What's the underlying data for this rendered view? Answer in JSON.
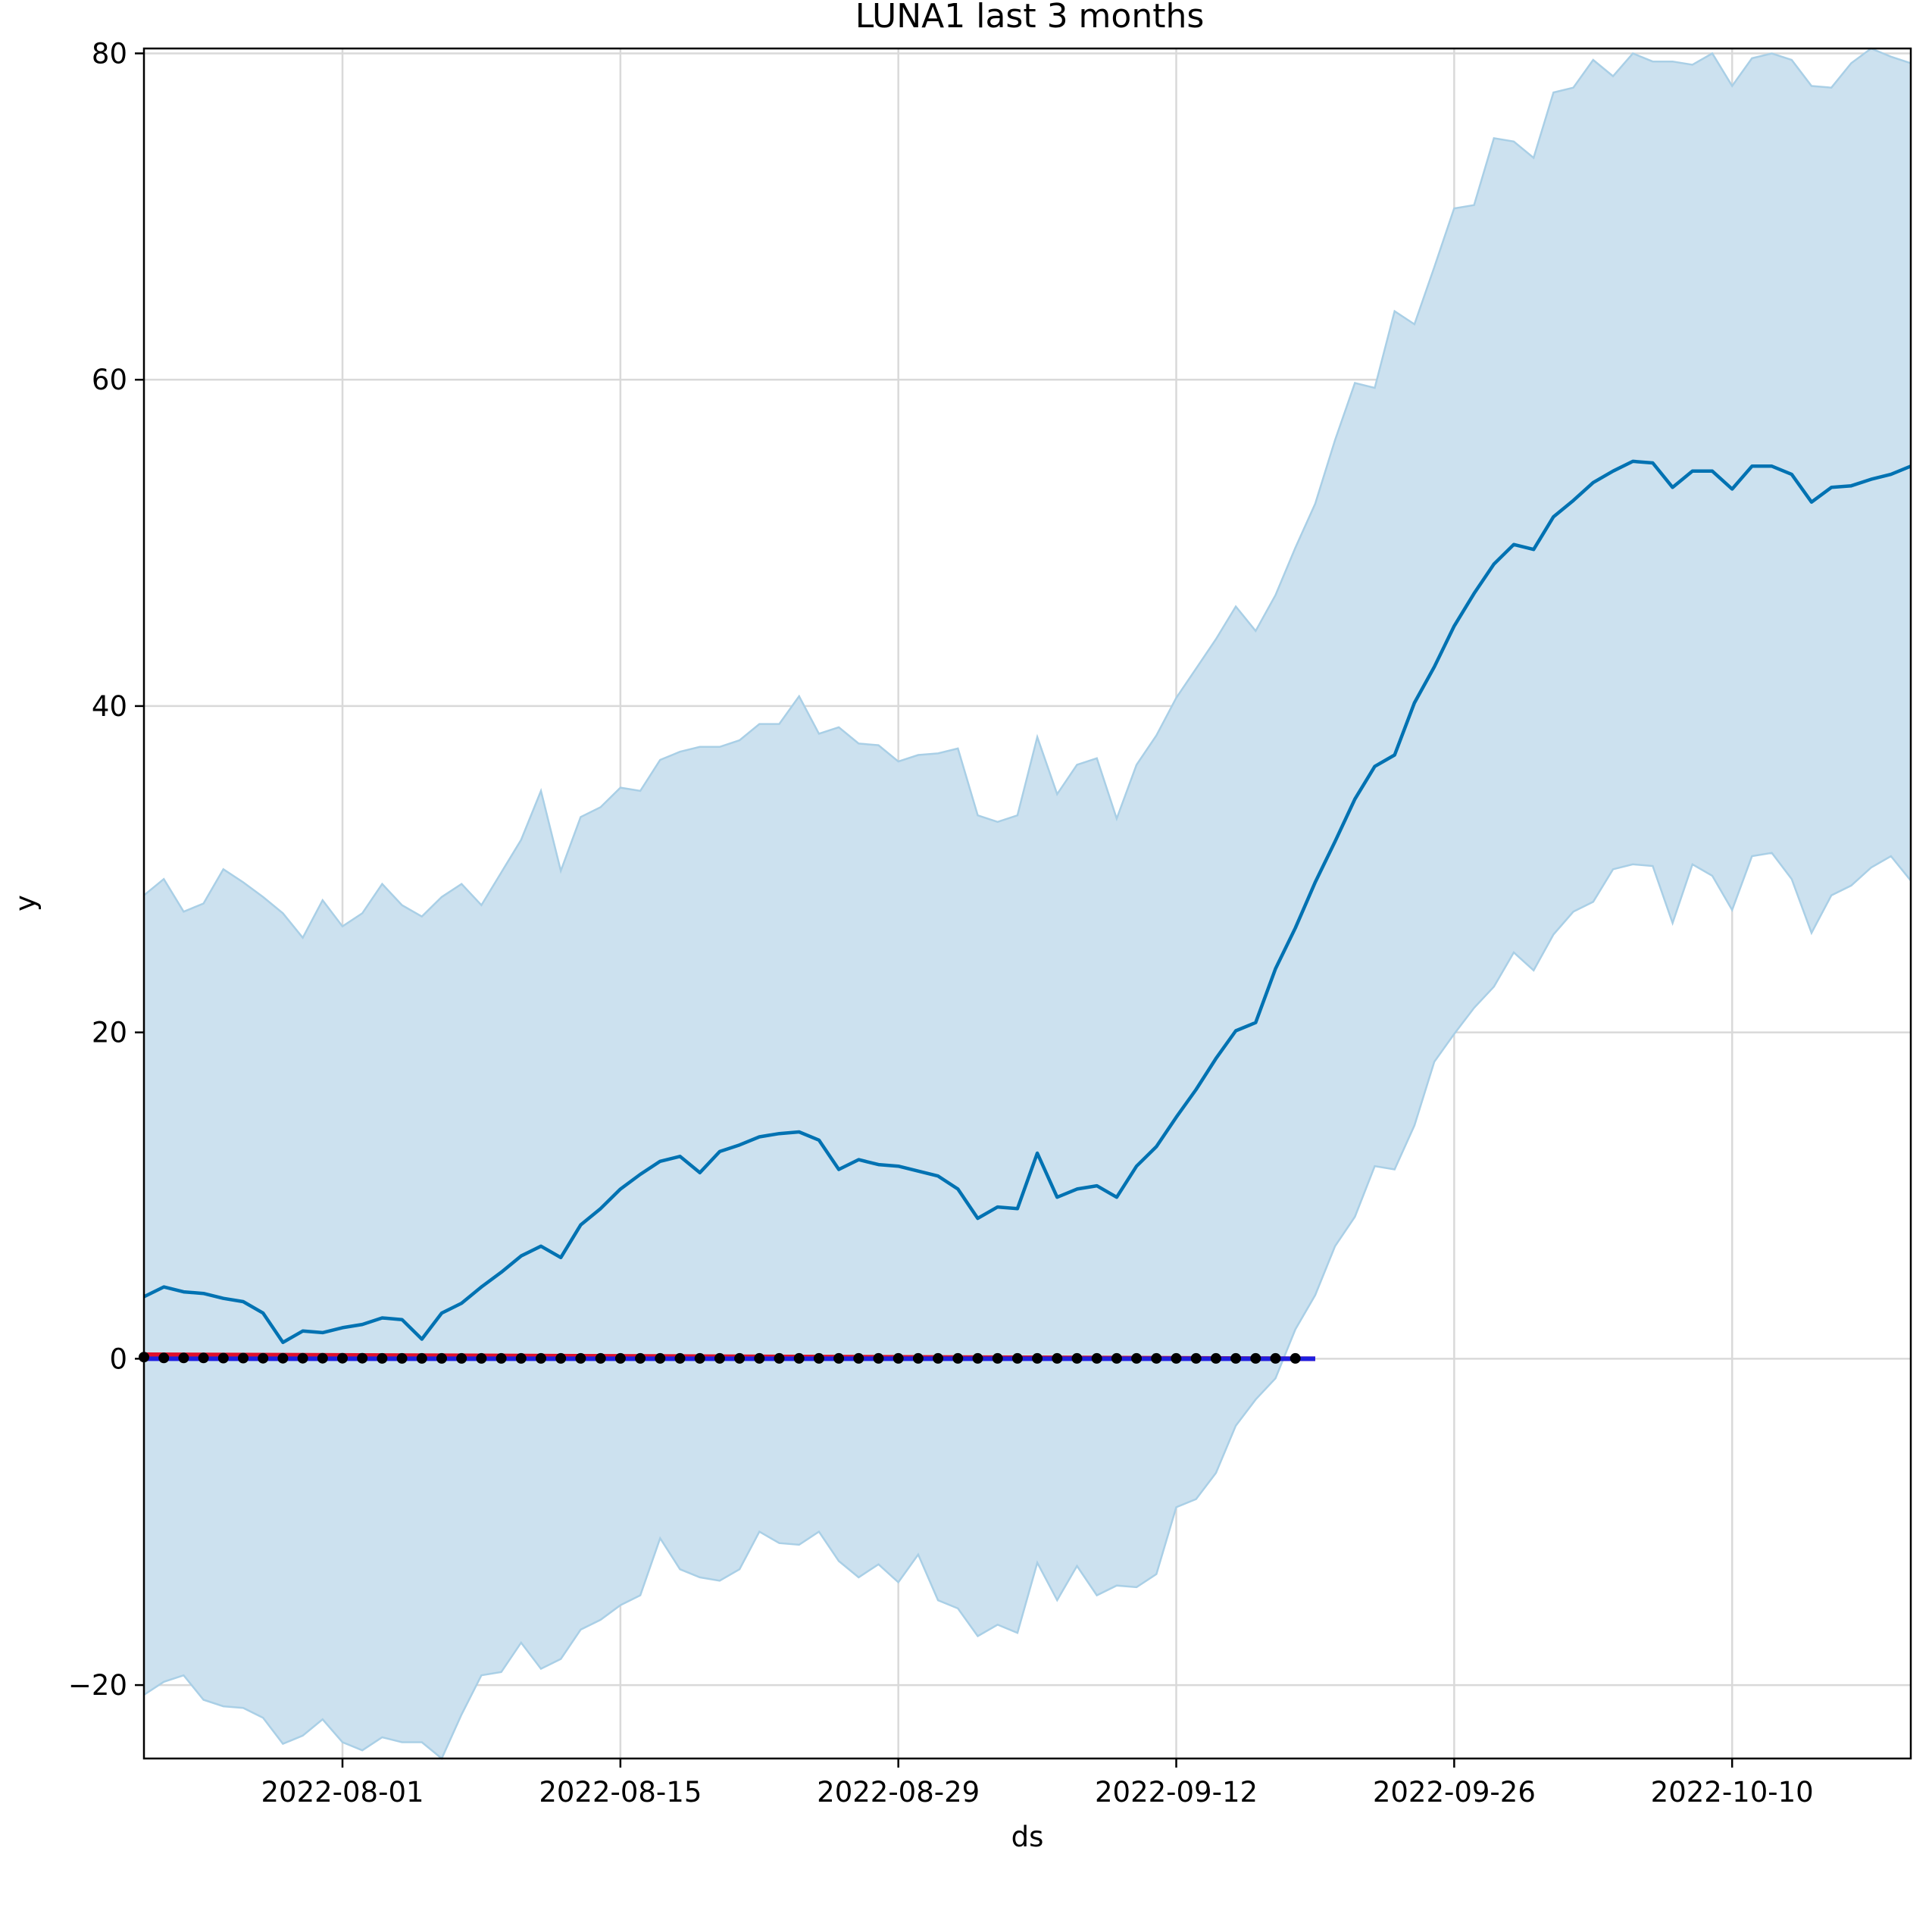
{
  "chart_data": {
    "type": "line",
    "title": "LUNA1 last 3 months",
    "xlabel": "ds",
    "ylabel": "y",
    "x_ticks": [
      "2022-08-01",
      "2022-08-15",
      "2022-08-29",
      "2022-09-12",
      "2022-09-26",
      "2022-10-10"
    ],
    "y_ticks": [
      "−20",
      "0",
      "20",
      "40",
      "60",
      "80"
    ],
    "y_tick_values": [
      -20,
      0,
      20,
      40,
      60,
      80
    ],
    "xlim": [
      "2022-07-22",
      "2022-10-19"
    ],
    "ylim": [
      -24.5,
      80.3
    ],
    "grid": true,
    "colors": {
      "forecast": "#0072B2",
      "band_fill": "#cce1ef",
      "band_edge": "#a9cfe6",
      "observed": "#000000",
      "trend_red": "#e0102a",
      "trend_blue": "#1e1ee0",
      "grid": "#d9d9d9"
    },
    "forecast": {
      "start_date": "2022-07-22",
      "yhat": [
        3.8,
        4.4,
        4.1,
        4.0,
        3.7,
        3.5,
        2.8,
        1.0,
        1.7,
        1.6,
        1.9,
        2.1,
        2.5,
        2.4,
        1.2,
        2.8,
        3.4,
        4.4,
        5.3,
        6.3,
        6.9,
        6.2,
        8.2,
        9.2,
        10.4,
        11.3,
        12.1,
        12.4,
        11.4,
        12.7,
        13.1,
        13.6,
        13.8,
        13.9,
        13.4,
        11.6,
        12.2,
        11.9,
        11.8,
        11.5,
        11.2,
        10.4,
        8.6,
        9.3,
        9.2,
        12.6,
        9.9,
        10.4,
        10.6,
        9.9,
        11.8,
        13.0,
        14.8,
        16.5,
        18.4,
        20.1,
        20.6,
        23.9,
        26.4,
        29.2,
        31.7,
        34.3,
        36.3,
        37.0,
        40.2,
        42.4,
        44.9,
        46.9,
        48.7,
        49.9,
        49.6,
        51.6,
        52.6,
        53.7,
        54.4,
        55.0,
        54.9,
        53.4,
        54.4,
        54.4,
        53.3,
        54.7,
        54.7,
        54.2,
        52.5,
        53.4,
        53.5,
        53.9,
        54.2,
        54.7
      ],
      "yhat_upper": [
        28.4,
        29.4,
        27.4,
        27.9,
        30.0,
        29.2,
        28.3,
        27.3,
        25.8,
        28.1,
        26.5,
        27.3,
        29.1,
        27.8,
        27.1,
        28.3,
        29.1,
        27.8,
        29.8,
        31.8,
        34.8,
        29.9,
        33.2,
        33.8,
        35.0,
        34.8,
        36.7,
        37.2,
        37.5,
        37.5,
        37.9,
        38.9,
        38.9,
        40.6,
        38.3,
        38.7,
        37.7,
        37.6,
        36.6,
        37.0,
        37.1,
        37.4,
        33.3,
        32.9,
        33.3,
        38.1,
        34.6,
        36.4,
        36.8,
        33.1,
        36.4,
        38.2,
        40.5,
        42.3,
        44.1,
        46.1,
        44.6,
        46.8,
        49.7,
        52.4,
        56.3,
        59.8,
        59.5,
        64.2,
        63.4,
        66.9,
        70.5,
        70.7,
        74.8,
        74.6,
        73.6,
        77.6,
        77.9,
        79.6,
        78.6,
        80.0,
        79.5,
        79.5,
        79.3,
        80.0,
        78.0,
        79.7,
        80.0,
        79.6,
        78.0,
        77.9,
        79.4,
        80.3,
        79.8,
        79.4
      ],
      "yhat_lower": [
        -20.6,
        -19.8,
        -19.4,
        -20.9,
        -21.3,
        -21.4,
        -22.0,
        -23.6,
        -23.1,
        -22.1,
        -23.5,
        -24.0,
        -23.2,
        -23.5,
        -23.5,
        -24.5,
        -21.8,
        -19.4,
        -19.2,
        -17.4,
        -19.0,
        -18.4,
        -16.6,
        -16.0,
        -15.1,
        -14.5,
        -11.0,
        -12.9,
        -13.4,
        -13.6,
        -12.9,
        -10.6,
        -11.3,
        -11.4,
        -10.6,
        -12.4,
        -13.4,
        -12.6,
        -13.7,
        -12.0,
        -14.8,
        -15.3,
        -17.0,
        -16.3,
        -16.8,
        -12.5,
        -14.8,
        -12.7,
        -14.5,
        -13.9,
        -14.0,
        -13.2,
        -9.1,
        -8.6,
        -7.0,
        -4.1,
        -2.5,
        -1.2,
        1.8,
        3.9,
        6.9,
        8.7,
        11.8,
        11.6,
        14.3,
        18.2,
        19.9,
        21.5,
        22.8,
        24.9,
        23.8,
        26.0,
        27.4,
        28.0,
        30.0,
        30.3,
        30.2,
        26.7,
        30.3,
        29.6,
        27.5,
        30.8,
        31.0,
        29.4,
        26.1,
        28.4,
        29.0,
        30.1,
        30.8,
        29.3
      ]
    },
    "observed": {
      "start_date": "2022-07-22",
      "y": [
        0.1,
        0.05,
        0.05,
        0.05,
        0.04,
        0.04,
        0.03,
        0.03,
        0.03,
        0.03,
        0.03,
        0.03,
        0.02,
        0.02,
        0.02,
        0.02,
        0.02,
        0.02,
        0.02,
        0.02,
        0.02,
        0.02,
        0.02,
        0.02,
        0.02,
        0.02,
        0.02,
        0.02,
        0.02,
        0.02,
        0.02,
        0.02,
        0.02,
        0.02,
        0.02,
        0.02,
        0.02,
        0.02,
        0.02,
        0.02,
        0.02,
        0.02,
        0.02,
        0.02,
        0.02,
        0.02,
        0.02,
        0.02,
        0.02,
        0.02,
        0.02,
        0.02,
        0.02,
        0.02,
        0.02,
        0.02,
        0.02,
        0.02,
        0.02
      ]
    },
    "trend_lines": [
      {
        "start_date": "2022-07-22",
        "end_date": "2022-09-19",
        "values": [
          0.25,
          0.0
        ],
        "color_key": "trend_red"
      },
      {
        "start_date": "2022-07-22",
        "end_date": "2022-09-19",
        "values": [
          0.0,
          0.0
        ],
        "color_key": "trend_blue"
      }
    ]
  }
}
